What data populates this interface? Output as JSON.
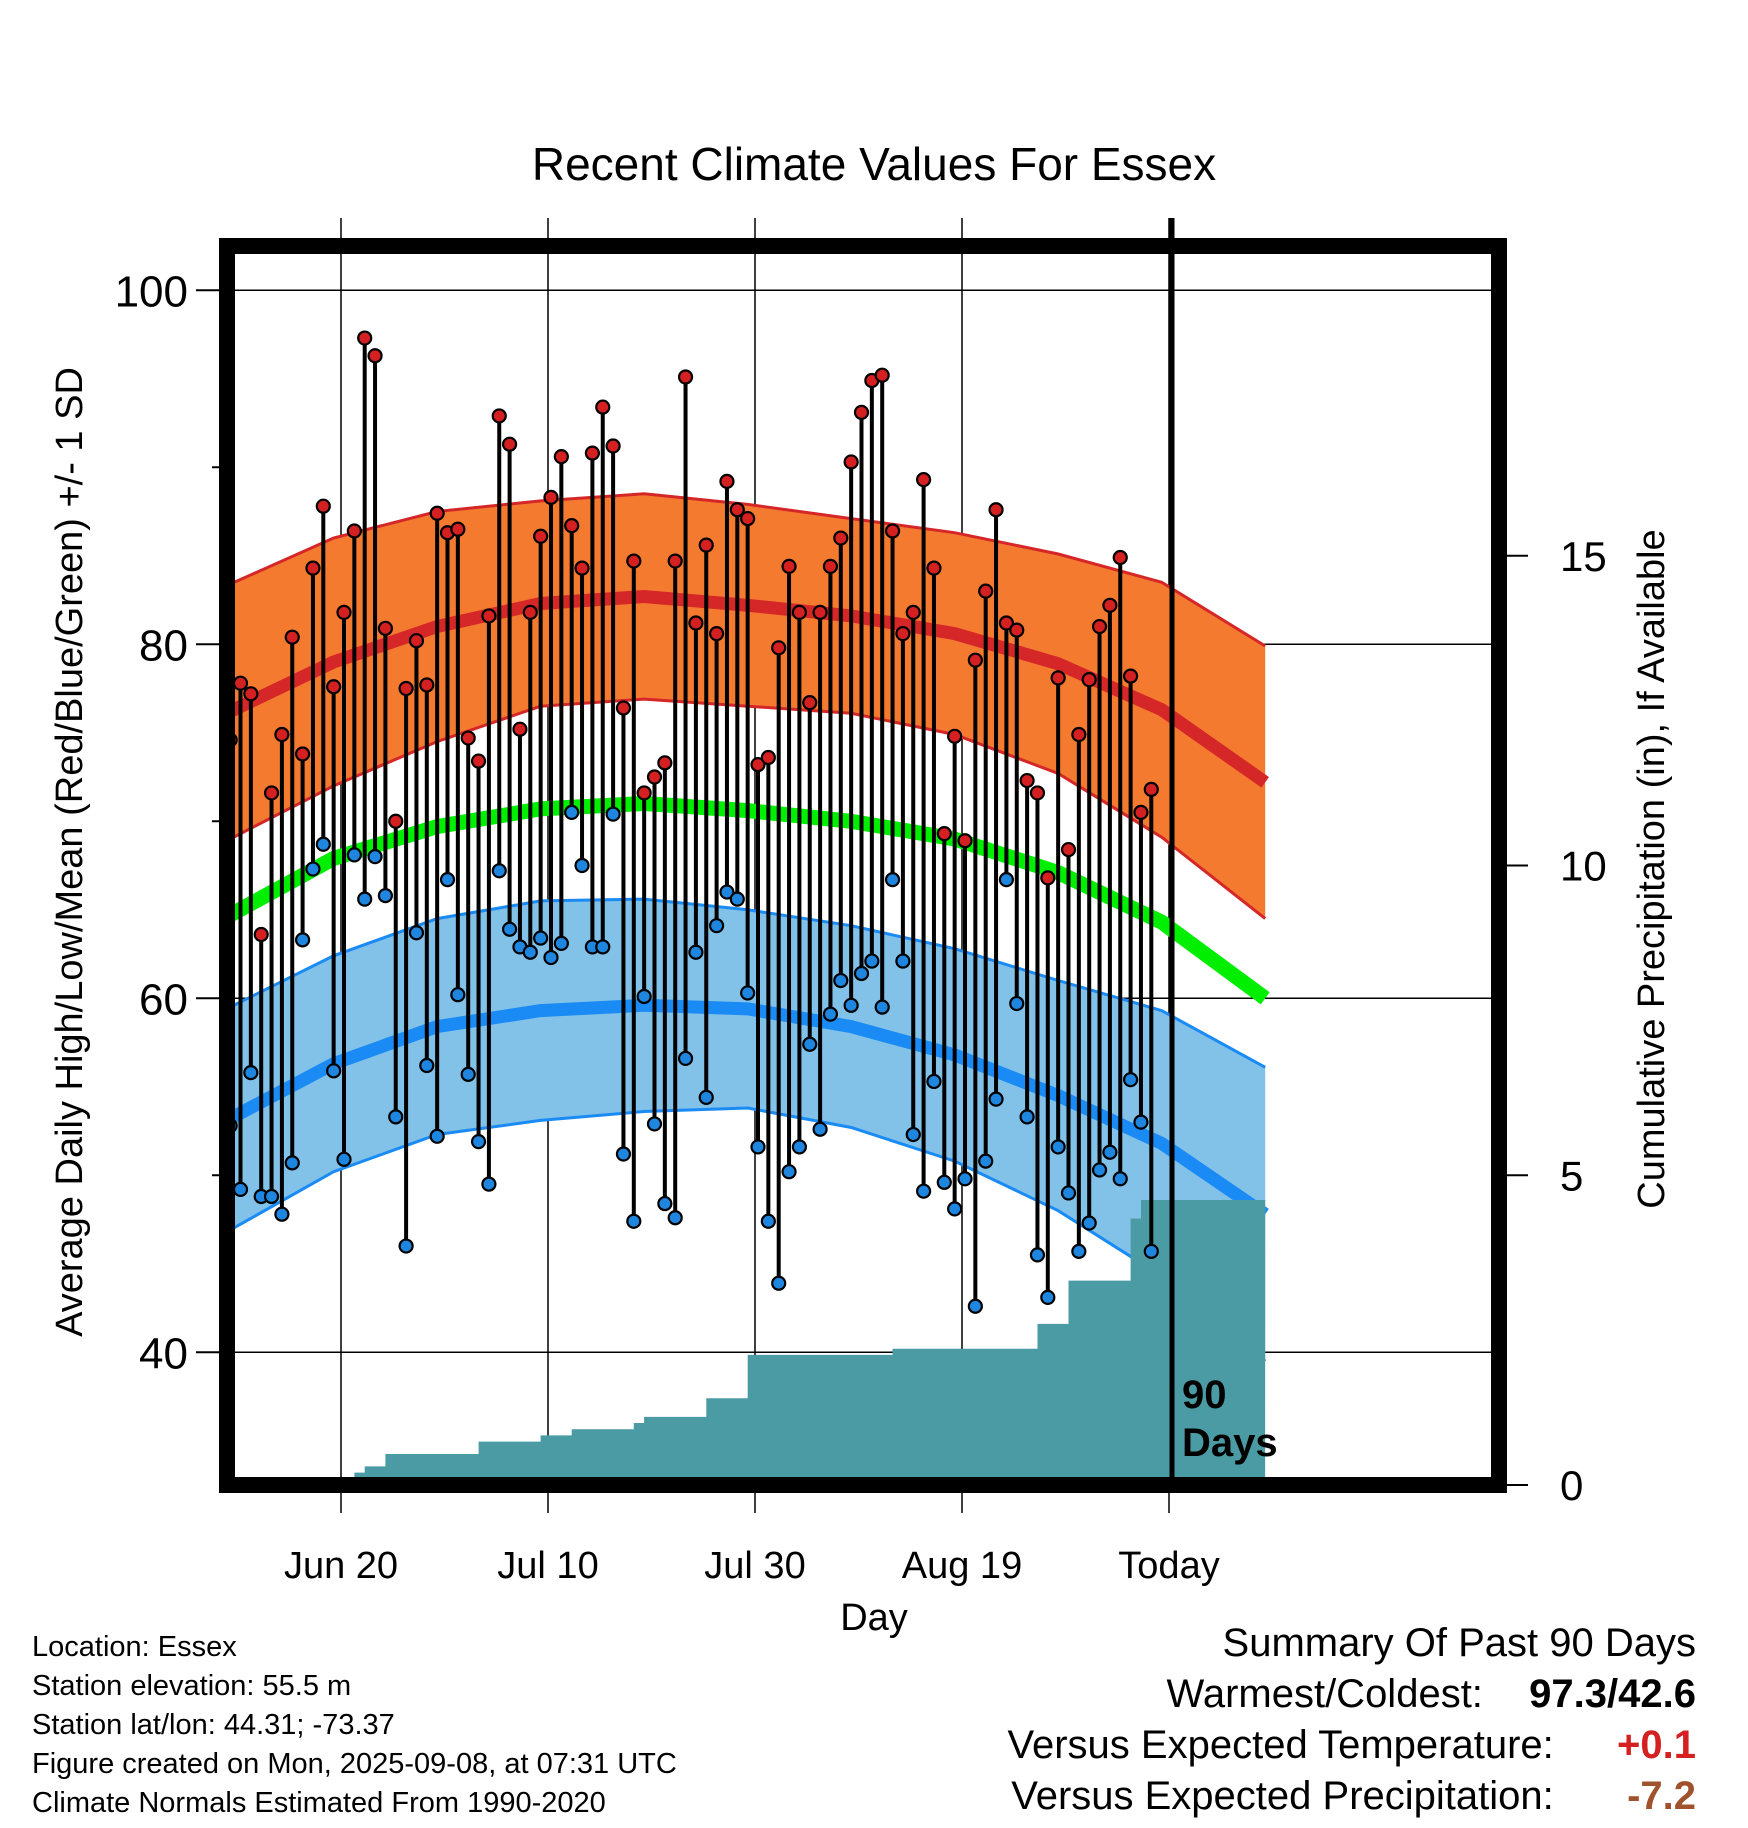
{
  "chart_data": {
    "type": "line",
    "title": "Recent Climate Values For Essex",
    "xlabel": "Day",
    "ylabel": "Average Daily High/Low/Mean (Red/Blue/Green) +/- 1 SD",
    "y2label": "Cumulative Precipitation (in), If Available",
    "x_ticks": [
      "Jun 20",
      "Jul 10",
      "Jul 30",
      "Aug 19",
      "Today"
    ],
    "y_ticks": [
      "40",
      "60",
      "80",
      "100"
    ],
    "y2_ticks": [
      "0",
      "5",
      "10",
      "15"
    ],
    "ylim": [
      32.5,
      102.5
    ],
    "y2lim": [
      0,
      20
    ],
    "x_day_range": [
      "2025-06-09",
      "2025-09-17"
    ],
    "today": "2025-09-08",
    "today_label_box": "90\nDays",
    "normals": {
      "dates": [
        "2025-06-09",
        "2025-06-19",
        "2025-06-29",
        "2025-07-09",
        "2025-07-19",
        "2025-07-29",
        "2025-08-08",
        "2025-08-18",
        "2025-08-28",
        "2025-09-07",
        "2025-09-17"
      ],
      "high_mean": [
        76.2,
        79.0,
        81.0,
        82.3,
        82.7,
        82.2,
        81.6,
        80.6,
        78.9,
        76.3,
        72.2
      ],
      "high_sd": [
        7.2,
        7.0,
        6.5,
        5.8,
        5.8,
        5.7,
        5.5,
        5.7,
        6.2,
        7.2,
        7.7
      ],
      "low_mean": [
        53.2,
        56.3,
        58.4,
        59.3,
        59.6,
        59.4,
        58.4,
        56.8,
        54.5,
        51.8,
        47.8
      ],
      "low_sd": [
        6.3,
        6.1,
        6.1,
        6.2,
        6.0,
        5.6,
        5.7,
        6.0,
        6.5,
        7.5,
        8.3
      ],
      "mean": [
        64.7,
        67.9,
        69.7,
        70.7,
        71.0,
        70.6,
        70.0,
        69.0,
        67.1,
        64.3,
        60.0
      ]
    },
    "observations": {
      "start_date": "2025-06-09",
      "high": [
        74.6,
        77.8,
        77.2,
        63.6,
        71.6,
        74.9,
        80.4,
        73.8,
        84.3,
        87.8,
        77.6,
        81.8,
        86.4,
        97.3,
        96.3,
        80.9,
        70.0,
        77.5,
        80.2,
        77.7,
        87.4,
        86.3,
        86.5,
        74.7,
        73.4,
        81.6,
        92.9,
        91.3,
        75.2,
        81.8,
        86.1,
        88.3,
        90.6,
        86.7,
        84.3,
        90.8,
        93.4,
        91.2,
        76.4,
        84.7,
        71.6,
        72.5,
        73.3,
        84.7,
        95.1,
        81.2,
        85.6,
        80.6,
        89.2,
        87.6,
        87.1,
        73.2,
        73.6,
        79.8,
        84.4,
        81.8,
        76.7,
        81.8,
        84.4,
        86.0,
        90.3,
        93.1,
        94.9,
        95.2,
        86.4,
        80.6,
        81.8,
        89.3,
        84.3,
        69.3,
        74.8,
        68.9,
        79.1,
        83.0,
        87.6,
        81.2,
        80.8,
        72.3,
        71.6,
        66.8,
        78.1,
        68.4,
        74.9,
        78.0,
        81.0,
        82.2,
        84.9,
        78.2,
        70.5,
        71.8
      ],
      "low": [
        52.8,
        49.2,
        55.8,
        48.8,
        48.8,
        47.8,
        50.7,
        63.3,
        67.3,
        68.7,
        55.9,
        50.9,
        68.1,
        65.6,
        68.0,
        65.8,
        53.3,
        46.0,
        63.7,
        56.2,
        52.2,
        66.7,
        60.2,
        55.7,
        51.9,
        49.5,
        67.2,
        63.9,
        62.9,
        62.6,
        63.4,
        62.3,
        63.1,
        70.5,
        67.5,
        62.9,
        62.9,
        70.4,
        51.2,
        47.4,
        60.1,
        52.9,
        48.4,
        47.6,
        56.6,
        62.6,
        54.4,
        64.1,
        66.0,
        65.6,
        60.3,
        51.6,
        47.4,
        43.9,
        50.2,
        51.6,
        57.4,
        52.6,
        59.1,
        61.0,
        59.6,
        61.4,
        62.1,
        59.5,
        66.7,
        62.1,
        52.3,
        49.1,
        55.3,
        49.6,
        48.1,
        49.8,
        42.6,
        50.8,
        54.3,
        66.7,
        59.7,
        53.3,
        45.5,
        43.1,
        51.6,
        49.0,
        45.7,
        47.3,
        50.3,
        51.3,
        49.8,
        55.4,
        53.0,
        45.7
      ]
    },
    "precip_cumulative": {
      "dates": [
        "2025-06-09",
        "2025-06-18",
        "2025-06-21",
        "2025-06-22",
        "2025-06-24",
        "2025-07-01",
        "2025-07-03",
        "2025-07-09",
        "2025-07-12",
        "2025-07-18",
        "2025-07-19",
        "2025-07-25",
        "2025-07-29",
        "2025-08-10",
        "2025-08-12",
        "2025-08-24",
        "2025-08-26",
        "2025-08-29",
        "2025-09-03",
        "2025-09-04",
        "2025-09-05",
        "2025-09-08",
        "2025-09-17"
      ],
      "values": [
        0.0,
        0.0,
        0.2,
        0.3,
        0.5,
        0.5,
        0.7,
        0.8,
        0.9,
        1.0,
        1.1,
        1.4,
        2.1,
        2.1,
        2.2,
        2.2,
        2.6,
        3.3,
        3.3,
        4.3,
        4.6,
        4.6,
        4.6
      ]
    },
    "colors": {
      "high_band": "#f47a30",
      "high_line": "#d62728",
      "low_band": "#82c1e8",
      "low_line": "#1a8bf5",
      "mean_line": "#00ee00",
      "precip": "#4a9ba3",
      "high_point": "#d42020",
      "low_point": "#1f86e0"
    },
    "grid": true
  },
  "meta": {
    "location": "Location: Essex",
    "elevation": "Station elevation: 55.5 m",
    "latlon": "Station lat/lon: 44.31; -73.37",
    "created": "Figure created on Mon, 2025-09-08, at 07:31 UTC",
    "normals": "Climate Normals Estimated From 1990-2020"
  },
  "summary": {
    "title": "Summary Of Past 90 Days",
    "warm_cold_label": "Warmest/Coldest:",
    "warm_cold_value": "97.3/42.6",
    "temp_label": "Versus Expected Temperature:",
    "temp_value": "+0.1",
    "temp_color": "#d42020",
    "precip_label": "Versus Expected Precipitation:",
    "precip_value": "-7.2",
    "precip_color": "#a0522d"
  }
}
